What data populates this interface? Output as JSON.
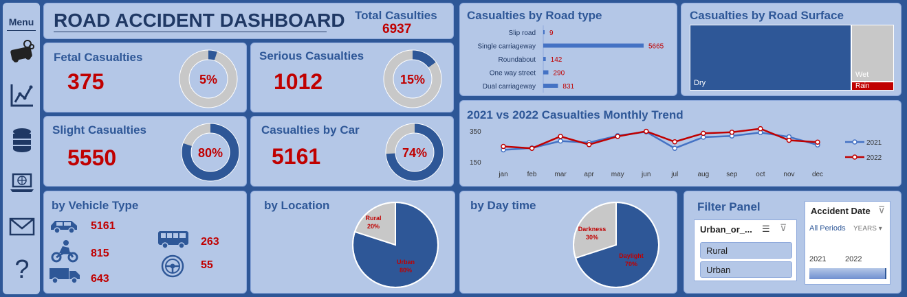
{
  "menu": {
    "label": "Menu",
    "icons": [
      "car-crash-icon",
      "line-chart-icon",
      "database-icon",
      "laptop-globe-icon",
      "mail-icon",
      "help-icon"
    ]
  },
  "header": {
    "title": "ROAD ACCIDENT DASHBOARD",
    "total_label": "Total Casulties",
    "total_value": "6937"
  },
  "kpis": {
    "fatal": {
      "label": "Fetal Casualties",
      "value": "375",
      "pct": "5%",
      "fraction": 0.05
    },
    "serious": {
      "label": "Serious Casualties",
      "value": "1012",
      "pct": "15%",
      "fraction": 0.15
    },
    "slight": {
      "label": "Slight Casualties",
      "value": "5550",
      "pct": "80%",
      "fraction": 0.8
    },
    "car": {
      "label": "Casualties by Car",
      "value": "5161",
      "pct": "74%",
      "fraction": 0.74
    }
  },
  "road_type": {
    "title": "Casualties by Road type",
    "chart_data": {
      "type": "bar",
      "categories": [
        "Slip road",
        "Single carriageway",
        "Roundabout",
        "One way street",
        "Dual carriageway"
      ],
      "values": [
        9,
        5665,
        142,
        290,
        831
      ],
      "labels": [
        "9",
        "5665",
        "142",
        "290",
        "831"
      ]
    }
  },
  "road_surface": {
    "title": "Casualties by Road Surface",
    "labels": {
      "dry": "Dry",
      "wet": "Wet",
      "rain": "Rain"
    }
  },
  "trend": {
    "title": "2021 vs 2022 Casualties Monthly Trend",
    "chart_data": {
      "type": "line",
      "x": [
        "jan",
        "feb",
        "mar",
        "apr",
        "may",
        "jun",
        "jul",
        "aug",
        "sep",
        "oct",
        "nov",
        "dec"
      ],
      "y_ticks": [
        "350",
        "150"
      ],
      "ylim": [
        150,
        350
      ],
      "series": [
        {
          "name": "2021",
          "color": "#4472c4",
          "values": [
            228,
            240,
            285,
            275,
            320,
            345,
            238,
            310,
            318,
            340,
            312,
            260
          ]
        },
        {
          "name": "2022",
          "color": "#c00000",
          "values": [
            250,
            238,
            315,
            262,
            315,
            348,
            280,
            335,
            342,
            365,
            290,
            278
          ]
        }
      ]
    }
  },
  "vehicle": {
    "title": "by Vehicle Type",
    "items": [
      {
        "icon": "car-icon",
        "value": "5161"
      },
      {
        "icon": "motorcycle-icon",
        "value": "815"
      },
      {
        "icon": "truck-icon",
        "value": "643"
      },
      {
        "icon": "bus-icon",
        "value": "263"
      },
      {
        "icon": "steering-wheel-icon",
        "value": "55"
      }
    ]
  },
  "location": {
    "title": "by Location",
    "chart_data": {
      "type": "pie",
      "categories": [
        "Urban",
        "Rural"
      ],
      "values": [
        80,
        20
      ],
      "labels": [
        "80%",
        "20%"
      ]
    }
  },
  "daytime": {
    "title": "by Day time",
    "chart_data": {
      "type": "pie",
      "categories": [
        "Daylight",
        "Darkness"
      ],
      "values": [
        70,
        30
      ],
      "labels": [
        "70%",
        "30%"
      ]
    }
  },
  "filter": {
    "title": "Filter Panel",
    "slicer_title": "Urban_or_...",
    "options": [
      "Rural",
      "Urban"
    ],
    "timeline_title": "Accident Date",
    "periods": "All Periods",
    "unit": "YEARS",
    "years": [
      "2021",
      "2022"
    ]
  },
  "colors": {
    "background": "#2e5797",
    "panel": "#b4c7e7",
    "accent": "#2e5797",
    "value": "#c00000",
    "donut_rest": "#c8c8c8"
  }
}
